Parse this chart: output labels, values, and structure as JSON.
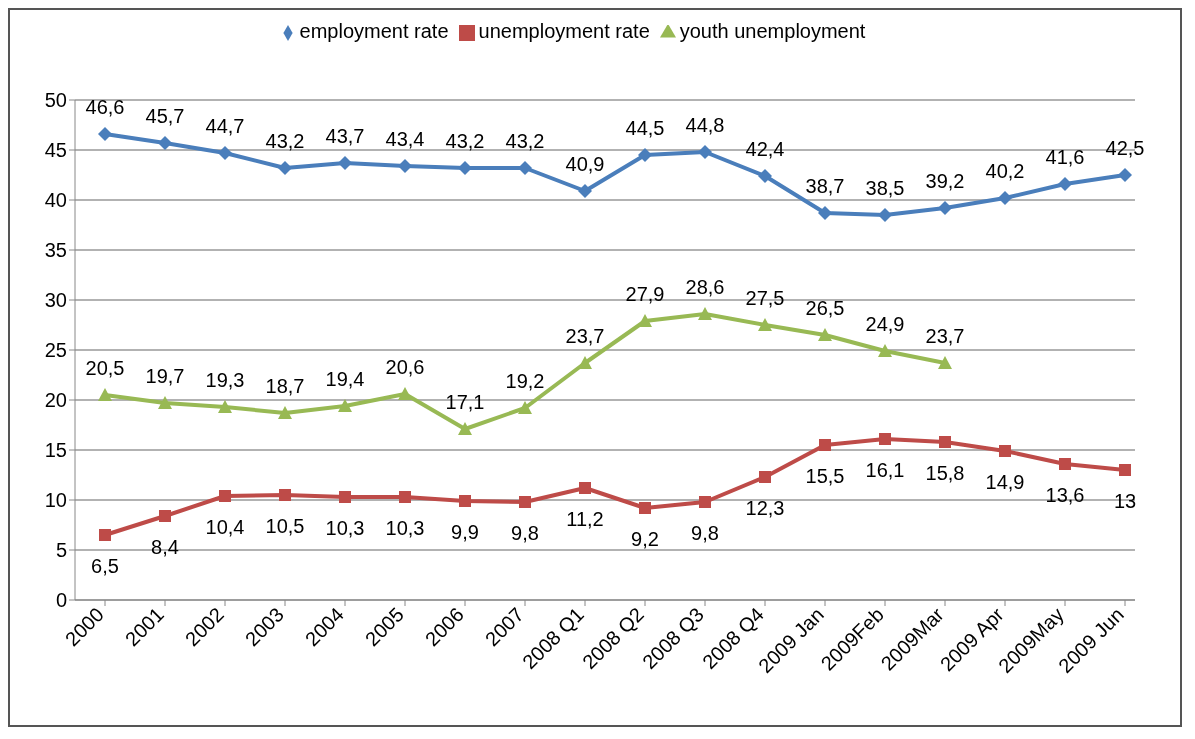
{
  "chart_data": {
    "type": "line",
    "categories": [
      "2000",
      "2001",
      "2002",
      "2003",
      "2004",
      "2005",
      "2006",
      "2007",
      "2008 Q1",
      "2008 Q2",
      "2008 Q3",
      "2008 Q4",
      "2009 Jan",
      "2009Feb",
      "2009Mar",
      "2009 Apr",
      "2009May",
      "2009 Jun"
    ],
    "series": [
      {
        "name": "employment rate",
        "color": "#4a7ebb",
        "marker": "diamond",
        "values": [
          46.6,
          45.7,
          44.7,
          43.2,
          43.7,
          43.4,
          43.2,
          43.2,
          40.9,
          44.5,
          44.8,
          42.4,
          38.7,
          38.5,
          39.2,
          40.2,
          41.6,
          42.5
        ],
        "value_labels": [
          "46,6",
          "45,7",
          "44,7",
          "43,2",
          "43,7",
          "43,4",
          "43,2",
          "43,2",
          "40,9",
          "44,5",
          "44,8",
          "42,4",
          "38,7",
          "38,5",
          "39,2",
          "40,2",
          "41,6",
          "42,5"
        ]
      },
      {
        "name": "unemployment rate",
        "color": "#be4b48",
        "marker": "square",
        "values": [
          6.5,
          8.4,
          10.4,
          10.5,
          10.3,
          10.3,
          9.9,
          9.8,
          11.2,
          9.2,
          9.8,
          12.3,
          15.5,
          16.1,
          15.8,
          14.9,
          13.6,
          13
        ],
        "value_labels": [
          "6,5",
          "8,4",
          "10,4",
          "10,5",
          "10,3",
          "10,3",
          "9,9",
          "9,8",
          "11,2",
          "9,2",
          "9,8",
          "12,3",
          "15,5",
          "16,1",
          "15,8",
          "14,9",
          "13,6",
          "13"
        ]
      },
      {
        "name": "youth unemployment",
        "color": "#98b954",
        "marker": "triangle",
        "values": [
          20.5,
          19.7,
          19.3,
          18.7,
          19.4,
          20.6,
          17.1,
          19.2,
          23.7,
          27.9,
          28.6,
          27.5,
          26.5,
          24.9,
          23.7,
          null,
          null,
          null
        ],
        "value_labels": [
          "20,5",
          "19,7",
          "19,3",
          "18,7",
          "19,4",
          "20,6",
          "17,1",
          "19,2",
          "23,7",
          "27,9",
          "28,6",
          "27,5",
          "26,5",
          "24,9",
          "23,7",
          null,
          null,
          null
        ]
      }
    ],
    "ylim": [
      0,
      50
    ],
    "yticks": [
      0,
      5,
      10,
      15,
      20,
      25,
      30,
      35,
      40,
      45,
      50
    ],
    "grid": "y",
    "legend": "top",
    "line_style": "solid"
  }
}
